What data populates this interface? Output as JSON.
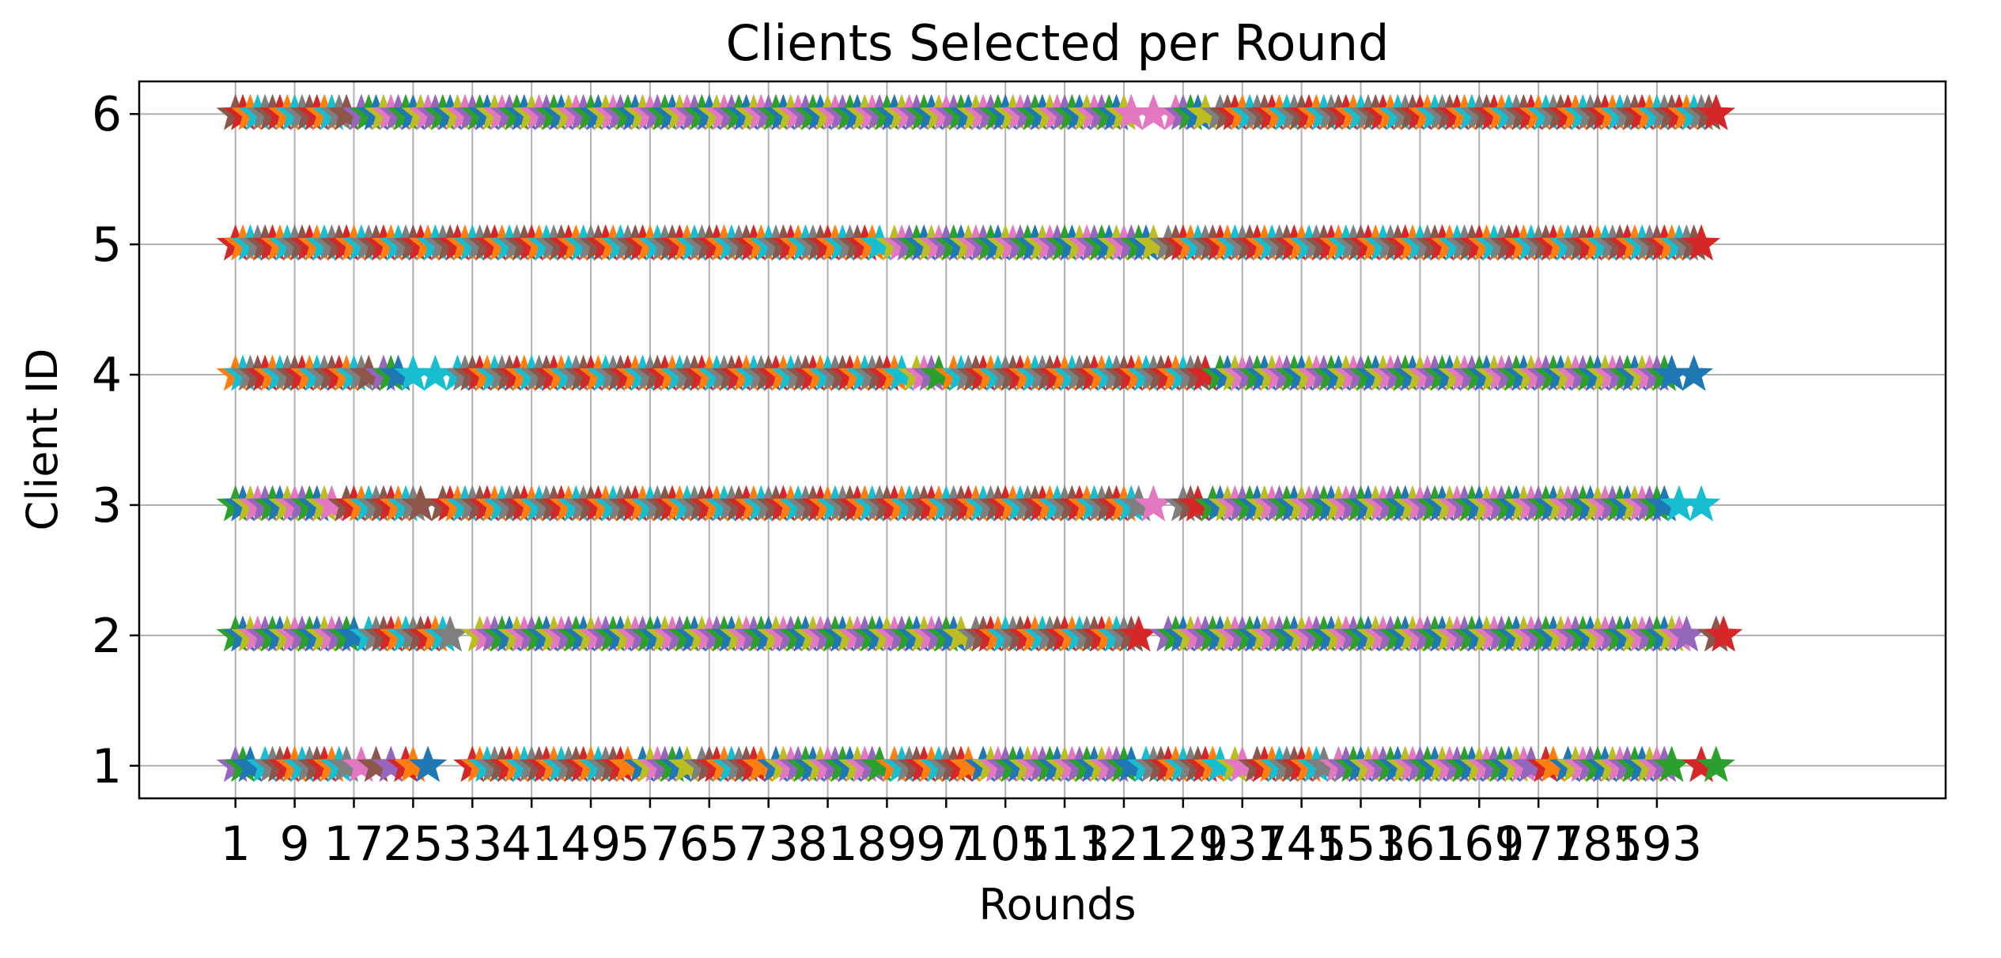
{
  "chart_data": {
    "type": "scatter",
    "title": "Clients Selected per Round",
    "xlabel": "Rounds",
    "ylabel": "Client ID",
    "marker": "star",
    "grid": true,
    "xlim": [
      -12,
      232
    ],
    "ylim": [
      0.75,
      6.25
    ],
    "x_ticks": [
      1,
      9,
      17,
      25,
      33,
      41,
      49,
      57,
      65,
      73,
      81,
      89,
      97,
      105,
      113,
      121,
      129,
      137,
      145,
      153,
      161,
      169,
      177,
      185,
      193
    ],
    "x_tick_labels": [
      "1",
      "9",
      "17",
      "25",
      "33",
      "41",
      "49",
      "57",
      "65",
      "73",
      "81",
      "89",
      "97",
      "105",
      "113",
      "121",
      "129",
      "137",
      "145",
      "153",
      "161",
      "169",
      "177",
      "185",
      "193"
    ],
    "y_ticks": [
      1,
      2,
      3,
      4,
      5,
      6
    ],
    "y_tick_labels": [
      "1",
      "2",
      "3",
      "4",
      "5",
      "6"
    ],
    "color_cycle": [
      "#1f77b4",
      "#ff7f0e",
      "#2ca02c",
      "#d62728",
      "#9467bd",
      "#8c564b",
      "#e377c2",
      "#7f7f7f",
      "#bcbd22",
      "#17becf"
    ],
    "points_per_client_line": 1,
    "series": [
      {
        "client": 1,
        "rounds": [
          1,
          2,
          3,
          5,
          6,
          7,
          8,
          9,
          10,
          11,
          12,
          13,
          14,
          15,
          16,
          18,
          20,
          22,
          24,
          25,
          27,
          33,
          34,
          35,
          36,
          37,
          38,
          39,
          40,
          41,
          42,
          43,
          44,
          45,
          46,
          47,
          48,
          49,
          50,
          51,
          52,
          53,
          54,
          56,
          57,
          58,
          59,
          60,
          61,
          62,
          64,
          65,
          66,
          67,
          68,
          69,
          70,
          71,
          72,
          74,
          75,
          76,
          77,
          78,
          79,
          80,
          81,
          82,
          83,
          84,
          85,
          86,
          87,
          88,
          90,
          91,
          92,
          93,
          94,
          95,
          96,
          97,
          98,
          99,
          100,
          102,
          103,
          104,
          105,
          106,
          107,
          108,
          109,
          110,
          111,
          112,
          113,
          114,
          115,
          116,
          117,
          118,
          119,
          120,
          121,
          122,
          124,
          125,
          126,
          127,
          128,
          129,
          130,
          131,
          132,
          133,
          134,
          136,
          137,
          139,
          140,
          141,
          142,
          143,
          144,
          145,
          146,
          147,
          148,
          150,
          151,
          152,
          153,
          154,
          155,
          156,
          157,
          158,
          159,
          160,
          161,
          162,
          163,
          164,
          165,
          166,
          167,
          168,
          169,
          170,
          171,
          172,
          173,
          174,
          175,
          176,
          178,
          179,
          181,
          182,
          183,
          184,
          185,
          186,
          187,
          188,
          189,
          190,
          191,
          192,
          193,
          194,
          195,
          199,
          201
        ]
      },
      {
        "client": 2,
        "rounds": [
          1,
          2,
          3,
          4,
          5,
          6,
          7,
          8,
          9,
          10,
          11,
          12,
          13,
          14,
          15,
          16,
          17,
          19,
          20,
          21,
          22,
          23,
          24,
          25,
          26,
          27,
          28,
          29,
          30,
          34,
          35,
          36,
          37,
          38,
          39,
          40,
          41,
          42,
          43,
          44,
          45,
          46,
          47,
          48,
          49,
          50,
          51,
          52,
          53,
          54,
          55,
          56,
          57,
          58,
          59,
          60,
          61,
          62,
          63,
          64,
          65,
          66,
          67,
          68,
          69,
          70,
          71,
          72,
          73,
          74,
          75,
          76,
          77,
          78,
          79,
          80,
          81,
          82,
          83,
          84,
          85,
          86,
          87,
          88,
          89,
          90,
          91,
          92,
          93,
          94,
          95,
          96,
          97,
          98,
          99,
          101,
          102,
          103,
          104,
          105,
          106,
          107,
          108,
          109,
          110,
          111,
          112,
          113,
          114,
          115,
          116,
          117,
          118,
          119,
          120,
          121,
          122,
          123,
          127,
          128,
          129,
          130,
          131,
          132,
          133,
          134,
          135,
          136,
          137,
          138,
          139,
          140,
          141,
          142,
          143,
          144,
          145,
          146,
          147,
          148,
          149,
          150,
          151,
          152,
          153,
          154,
          155,
          156,
          157,
          158,
          159,
          160,
          161,
          162,
          163,
          164,
          165,
          166,
          167,
          168,
          169,
          170,
          171,
          172,
          173,
          174,
          175,
          176,
          177,
          178,
          179,
          180,
          181,
          182,
          183,
          184,
          185,
          186,
          187,
          188,
          189,
          190,
          191,
          192,
          193,
          194,
          195,
          196,
          197,
          201,
          202
        ]
      },
      {
        "client": 3,
        "rounds": [
          1,
          2,
          3,
          4,
          5,
          6,
          7,
          8,
          9,
          10,
          11,
          12,
          13,
          14,
          16,
          17,
          18,
          19,
          20,
          21,
          22,
          23,
          24,
          25,
          26,
          29,
          30,
          31,
          32,
          33,
          34,
          35,
          36,
          37,
          38,
          39,
          40,
          41,
          42,
          43,
          44,
          45,
          46,
          47,
          48,
          49,
          50,
          51,
          52,
          53,
          54,
          55,
          56,
          57,
          58,
          59,
          60,
          61,
          62,
          63,
          64,
          65,
          66,
          67,
          68,
          69,
          70,
          71,
          72,
          73,
          74,
          75,
          76,
          77,
          78,
          79,
          80,
          81,
          82,
          83,
          84,
          85,
          86,
          87,
          88,
          89,
          90,
          91,
          92,
          93,
          94,
          95,
          96,
          97,
          98,
          99,
          100,
          101,
          102,
          103,
          104,
          105,
          106,
          107,
          108,
          109,
          110,
          111,
          112,
          113,
          114,
          115,
          116,
          117,
          118,
          119,
          120,
          121,
          122,
          123,
          125,
          129,
          130,
          131,
          133,
          134,
          135,
          136,
          137,
          138,
          139,
          140,
          141,
          142,
          143,
          144,
          145,
          146,
          147,
          148,
          149,
          150,
          151,
          152,
          153,
          154,
          155,
          156,
          157,
          158,
          159,
          160,
          161,
          162,
          163,
          164,
          165,
          166,
          167,
          168,
          169,
          170,
          171,
          172,
          173,
          174,
          175,
          176,
          177,
          178,
          179,
          180,
          181,
          182,
          183,
          184,
          185,
          186,
          187,
          188,
          189,
          190,
          191,
          192,
          193,
          194,
          196,
          199
        ]
      },
      {
        "client": 4,
        "rounds": [
          1,
          2,
          3,
          4,
          5,
          6,
          7,
          8,
          9,
          10,
          11,
          12,
          13,
          14,
          15,
          16,
          17,
          18,
          19,
          21,
          22,
          23,
          25,
          28,
          31,
          32,
          33,
          34,
          35,
          36,
          37,
          38,
          39,
          40,
          41,
          42,
          43,
          44,
          45,
          46,
          47,
          48,
          49,
          50,
          51,
          52,
          53,
          54,
          55,
          56,
          57,
          58,
          59,
          60,
          61,
          62,
          63,
          64,
          65,
          66,
          67,
          68,
          69,
          70,
          71,
          72,
          73,
          74,
          75,
          76,
          77,
          78,
          79,
          80,
          81,
          82,
          83,
          84,
          85,
          86,
          87,
          88,
          89,
          90,
          91,
          93,
          94,
          95,
          96,
          98,
          99,
          100,
          101,
          102,
          103,
          104,
          105,
          106,
          107,
          108,
          109,
          110,
          111,
          112,
          113,
          114,
          115,
          116,
          117,
          118,
          119,
          120,
          121,
          122,
          123,
          124,
          125,
          126,
          127,
          128,
          129,
          130,
          131,
          132,
          134,
          135,
          136,
          137,
          138,
          139,
          140,
          141,
          142,
          143,
          144,
          145,
          146,
          147,
          148,
          149,
          150,
          151,
          152,
          153,
          154,
          155,
          156,
          157,
          158,
          159,
          160,
          161,
          162,
          163,
          164,
          165,
          166,
          167,
          168,
          169,
          170,
          171,
          172,
          173,
          174,
          175,
          176,
          177,
          178,
          179,
          180,
          181,
          182,
          183,
          184,
          185,
          186,
          187,
          188,
          189,
          190,
          191,
          192,
          193,
          194,
          195,
          198
        ]
      },
      {
        "client": 5,
        "rounds": [
          1,
          2,
          3,
          4,
          5,
          6,
          7,
          8,
          9,
          10,
          11,
          12,
          13,
          14,
          15,
          16,
          17,
          18,
          19,
          20,
          21,
          22,
          23,
          24,
          25,
          26,
          27,
          28,
          29,
          30,
          31,
          32,
          33,
          34,
          35,
          36,
          37,
          38,
          39,
          40,
          41,
          42,
          43,
          44,
          45,
          46,
          47,
          48,
          49,
          50,
          51,
          52,
          53,
          54,
          55,
          56,
          57,
          58,
          59,
          60,
          61,
          62,
          63,
          64,
          65,
          66,
          67,
          68,
          69,
          70,
          71,
          72,
          73,
          74,
          75,
          76,
          77,
          78,
          79,
          80,
          81,
          82,
          83,
          84,
          85,
          86,
          87,
          88,
          90,
          91,
          92,
          93,
          94,
          95,
          96,
          97,
          98,
          99,
          100,
          101,
          102,
          103,
          104,
          105,
          106,
          107,
          108,
          109,
          110,
          111,
          112,
          113,
          114,
          115,
          116,
          117,
          118,
          119,
          120,
          121,
          122,
          123,
          124,
          125,
          127,
          128,
          129,
          130,
          131,
          132,
          133,
          134,
          135,
          136,
          137,
          138,
          139,
          140,
          141,
          142,
          143,
          144,
          145,
          146,
          147,
          148,
          149,
          150,
          151,
          152,
          153,
          154,
          155,
          156,
          157,
          158,
          159,
          160,
          161,
          162,
          163,
          164,
          165,
          166,
          167,
          168,
          169,
          170,
          171,
          172,
          173,
          174,
          175,
          176,
          177,
          178,
          179,
          180,
          181,
          182,
          183,
          184,
          185,
          186,
          187,
          188,
          189,
          190,
          191,
          192,
          193,
          194,
          195,
          196,
          197,
          198,
          199
        ]
      },
      {
        "client": 6,
        "rounds": [
          1,
          2,
          3,
          4,
          5,
          6,
          7,
          8,
          9,
          10,
          11,
          12,
          13,
          14,
          15,
          16,
          18,
          19,
          20,
          21,
          22,
          23,
          24,
          25,
          26,
          27,
          28,
          29,
          30,
          31,
          32,
          33,
          34,
          35,
          36,
          37,
          38,
          39,
          40,
          41,
          42,
          43,
          44,
          45,
          46,
          47,
          48,
          49,
          50,
          51,
          52,
          53,
          54,
          55,
          56,
          57,
          58,
          59,
          60,
          61,
          62,
          63,
          64,
          65,
          66,
          67,
          68,
          69,
          70,
          71,
          72,
          73,
          74,
          75,
          76,
          77,
          78,
          79,
          80,
          81,
          82,
          83,
          84,
          85,
          86,
          87,
          88,
          89,
          90,
          91,
          92,
          93,
          94,
          95,
          96,
          97,
          98,
          99,
          100,
          101,
          102,
          103,
          104,
          105,
          106,
          107,
          108,
          109,
          110,
          111,
          112,
          113,
          114,
          115,
          116,
          117,
          118,
          119,
          120,
          121,
          122,
          125,
          128,
          129,
          130,
          131,
          132,
          134,
          135,
          136,
          137,
          138,
          139,
          140,
          141,
          142,
          143,
          144,
          145,
          146,
          147,
          148,
          149,
          150,
          151,
          152,
          153,
          154,
          155,
          156,
          157,
          158,
          159,
          160,
          161,
          162,
          163,
          164,
          165,
          166,
          167,
          168,
          169,
          170,
          171,
          172,
          173,
          174,
          175,
          176,
          177,
          178,
          179,
          180,
          181,
          182,
          183,
          184,
          185,
          186,
          187,
          188,
          189,
          190,
          191,
          192,
          193,
          194,
          195,
          196,
          197,
          198,
          199,
          200,
          201
        ]
      }
    ]
  }
}
